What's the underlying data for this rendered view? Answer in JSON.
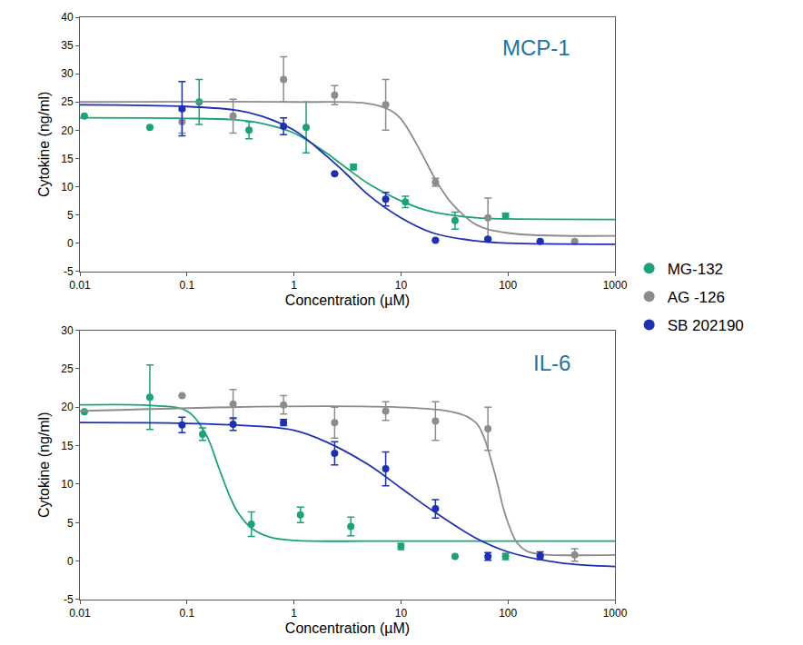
{
  "chart_data": [
    {
      "type": "scatter",
      "title": "MCP-1",
      "x_label": "Concentration (µM)",
      "y_label": "Cytokine (ng/ml)",
      "log": "x",
      "grid": false,
      "legend": "right",
      "xlim": [
        0.01,
        1000
      ],
      "xticks": [
        0.01,
        0.1,
        1,
        10,
        100,
        1000
      ],
      "ylim": [
        -5,
        40
      ],
      "yticks": [
        -5,
        0,
        5,
        10,
        15,
        20,
        25,
        30,
        35,
        40
      ],
      "series": [
        {
          "name": "MG-132",
          "color": "#1aa37a",
          "marker": "circle",
          "line_style": "solid",
          "x": [
            0.011,
            0.045,
            0.13,
            0.38,
            1.3,
            3.6,
            11,
            32,
            95
          ],
          "values": [
            22.5,
            20.5,
            25,
            20,
            20.5,
            13.5,
            7.3,
            4,
            4.8
          ],
          "error": [
            null,
            null,
            4,
            1.5,
            4.5,
            0.5,
            1,
            1.5,
            0.5
          ],
          "fit": {
            "x": [
              0.01,
              0.1,
              0.3,
              0.5,
              1,
              2,
              3,
              5,
              10,
              20,
              50,
              100,
              1000
            ],
            "values": [
              22.2,
              22.1,
              21.8,
              21.2,
              19.5,
              16,
              13.5,
              10.5,
              7.5,
              5.5,
              4.5,
              4.3,
              4.2
            ]
          }
        },
        {
          "name": "AG -126",
          "color": "#8c8c8c",
          "marker": "circle",
          "line_style": "solid",
          "x": [
            0.09,
            0.27,
            0.8,
            2.4,
            7.2,
            21,
            65,
            420
          ],
          "values": [
            21.5,
            22.5,
            29,
            26.2,
            24.5,
            10.8,
            4.5,
            0.3
          ],
          "error": [
            2,
            3,
            4,
            1.7,
            4.5,
            0.7,
            3.5,
            null
          ],
          "fit": {
            "x": [
              0.01,
              1,
              5,
              8,
              10,
              15,
              20,
              25,
              30,
              50,
              100,
              1000
            ],
            "values": [
              25,
              25,
              24.7,
              23.5,
              22,
              16.5,
              12,
              9,
              7,
              3.3,
              1.8,
              1.3
            ]
          }
        },
        {
          "name": "SB 202190",
          "color": "#1c2fb5",
          "marker": "circle",
          "line_style": "solid",
          "x": [
            0.09,
            0.8,
            2.4,
            7.2,
            21,
            65,
            200
          ],
          "values": [
            23.8,
            20.7,
            12.3,
            7.8,
            0.5,
            0.7,
            0.3
          ],
          "error": [
            4.8,
            1.5,
            null,
            1.2,
            null,
            null,
            null
          ],
          "fit": {
            "x": [
              0.01,
              0.1,
              0.3,
              0.5,
              1,
              2,
              3,
              5,
              10,
              20,
              50,
              100,
              1000
            ],
            "values": [
              24.5,
              24.2,
              23.5,
              22.5,
              20,
              15.5,
              12.5,
              8.5,
              4.5,
              1.8,
              0.4,
              0,
              -0.2
            ]
          }
        }
      ]
    },
    {
      "type": "scatter",
      "title": "IL-6",
      "x_label": "Concentration (µM)",
      "y_label": "Cytokine (ng/ml)",
      "log": "x",
      "grid": false,
      "xlim": [
        0.01,
        1000
      ],
      "xticks": [
        0.01,
        0.1,
        1,
        10,
        100,
        1000
      ],
      "ylim": [
        -5,
        30
      ],
      "yticks": [
        -5,
        0,
        5,
        10,
        15,
        20,
        25,
        30
      ],
      "series": [
        {
          "name": "MG-132",
          "color": "#1aa37a",
          "marker": "circle",
          "line_style": "solid",
          "x": [
            0.011,
            0.045,
            0.14,
            0.4,
            1.15,
            3.4,
            10,
            32,
            95
          ],
          "values": [
            19.4,
            21.3,
            16.5,
            4.8,
            6,
            4.5,
            1.9,
            0.6,
            0.6
          ],
          "error": [
            null,
            4.2,
            0.8,
            1.6,
            1,
            1.2,
            0.4,
            null,
            0.4
          ],
          "fit": {
            "x": [
              0.01,
              0.05,
              0.1,
              0.15,
              0.2,
              0.25,
              0.3,
              0.4,
              0.6,
              1,
              10,
              1000
            ],
            "values": [
              20.3,
              20.2,
              19.5,
              16.5,
              12,
              8.5,
              6.3,
              4.3,
              3.1,
              2.7,
              2.6,
              2.6
            ]
          }
        },
        {
          "name": "AG -126",
          "color": "#8c8c8c",
          "marker": "circle",
          "line_style": "solid",
          "x": [
            0.09,
            0.27,
            0.8,
            2.4,
            7.2,
            21,
            65,
            200,
            420
          ],
          "values": [
            21.5,
            20.4,
            20.3,
            18,
            19.5,
            18.2,
            17.2,
            0.6,
            0.8
          ],
          "error": [
            null,
            1.9,
            1.2,
            2,
            1.2,
            2.5,
            2.8,
            null,
            0.8
          ],
          "fit": {
            "x": [
              0.01,
              30,
              50,
              60,
              70,
              80,
              90,
              100,
              120,
              150,
              200,
              1000
            ],
            "values": [
              19.5,
              19.4,
              18,
              16,
              13,
              10,
              7,
              5,
              2.5,
              1.3,
              0.9,
              0.8
            ]
          }
        },
        {
          "name": "SB 202190",
          "color": "#1c2fb5",
          "marker": "circle",
          "line_style": "solid",
          "x": [
            0.09,
            0.27,
            0.8,
            2.4,
            7.2,
            21,
            65,
            200
          ],
          "values": [
            17.7,
            17.8,
            18,
            14,
            12,
            6.8,
            0.6,
            0.7
          ],
          "error": [
            1,
            0.8,
            0.4,
            1.5,
            2.2,
            1.2,
            0.5,
            0.5
          ],
          "fit": {
            "x": [
              0.01,
              0.1,
              0.5,
              1,
              2,
              5,
              10,
              20,
              50,
              100,
              300,
              1000
            ],
            "values": [
              18,
              17.9,
              17.5,
              17,
              15.5,
              12.5,
              9.5,
              6.5,
              3,
              1.2,
              -0.2,
              -0.7
            ]
          }
        }
      ]
    }
  ]
}
